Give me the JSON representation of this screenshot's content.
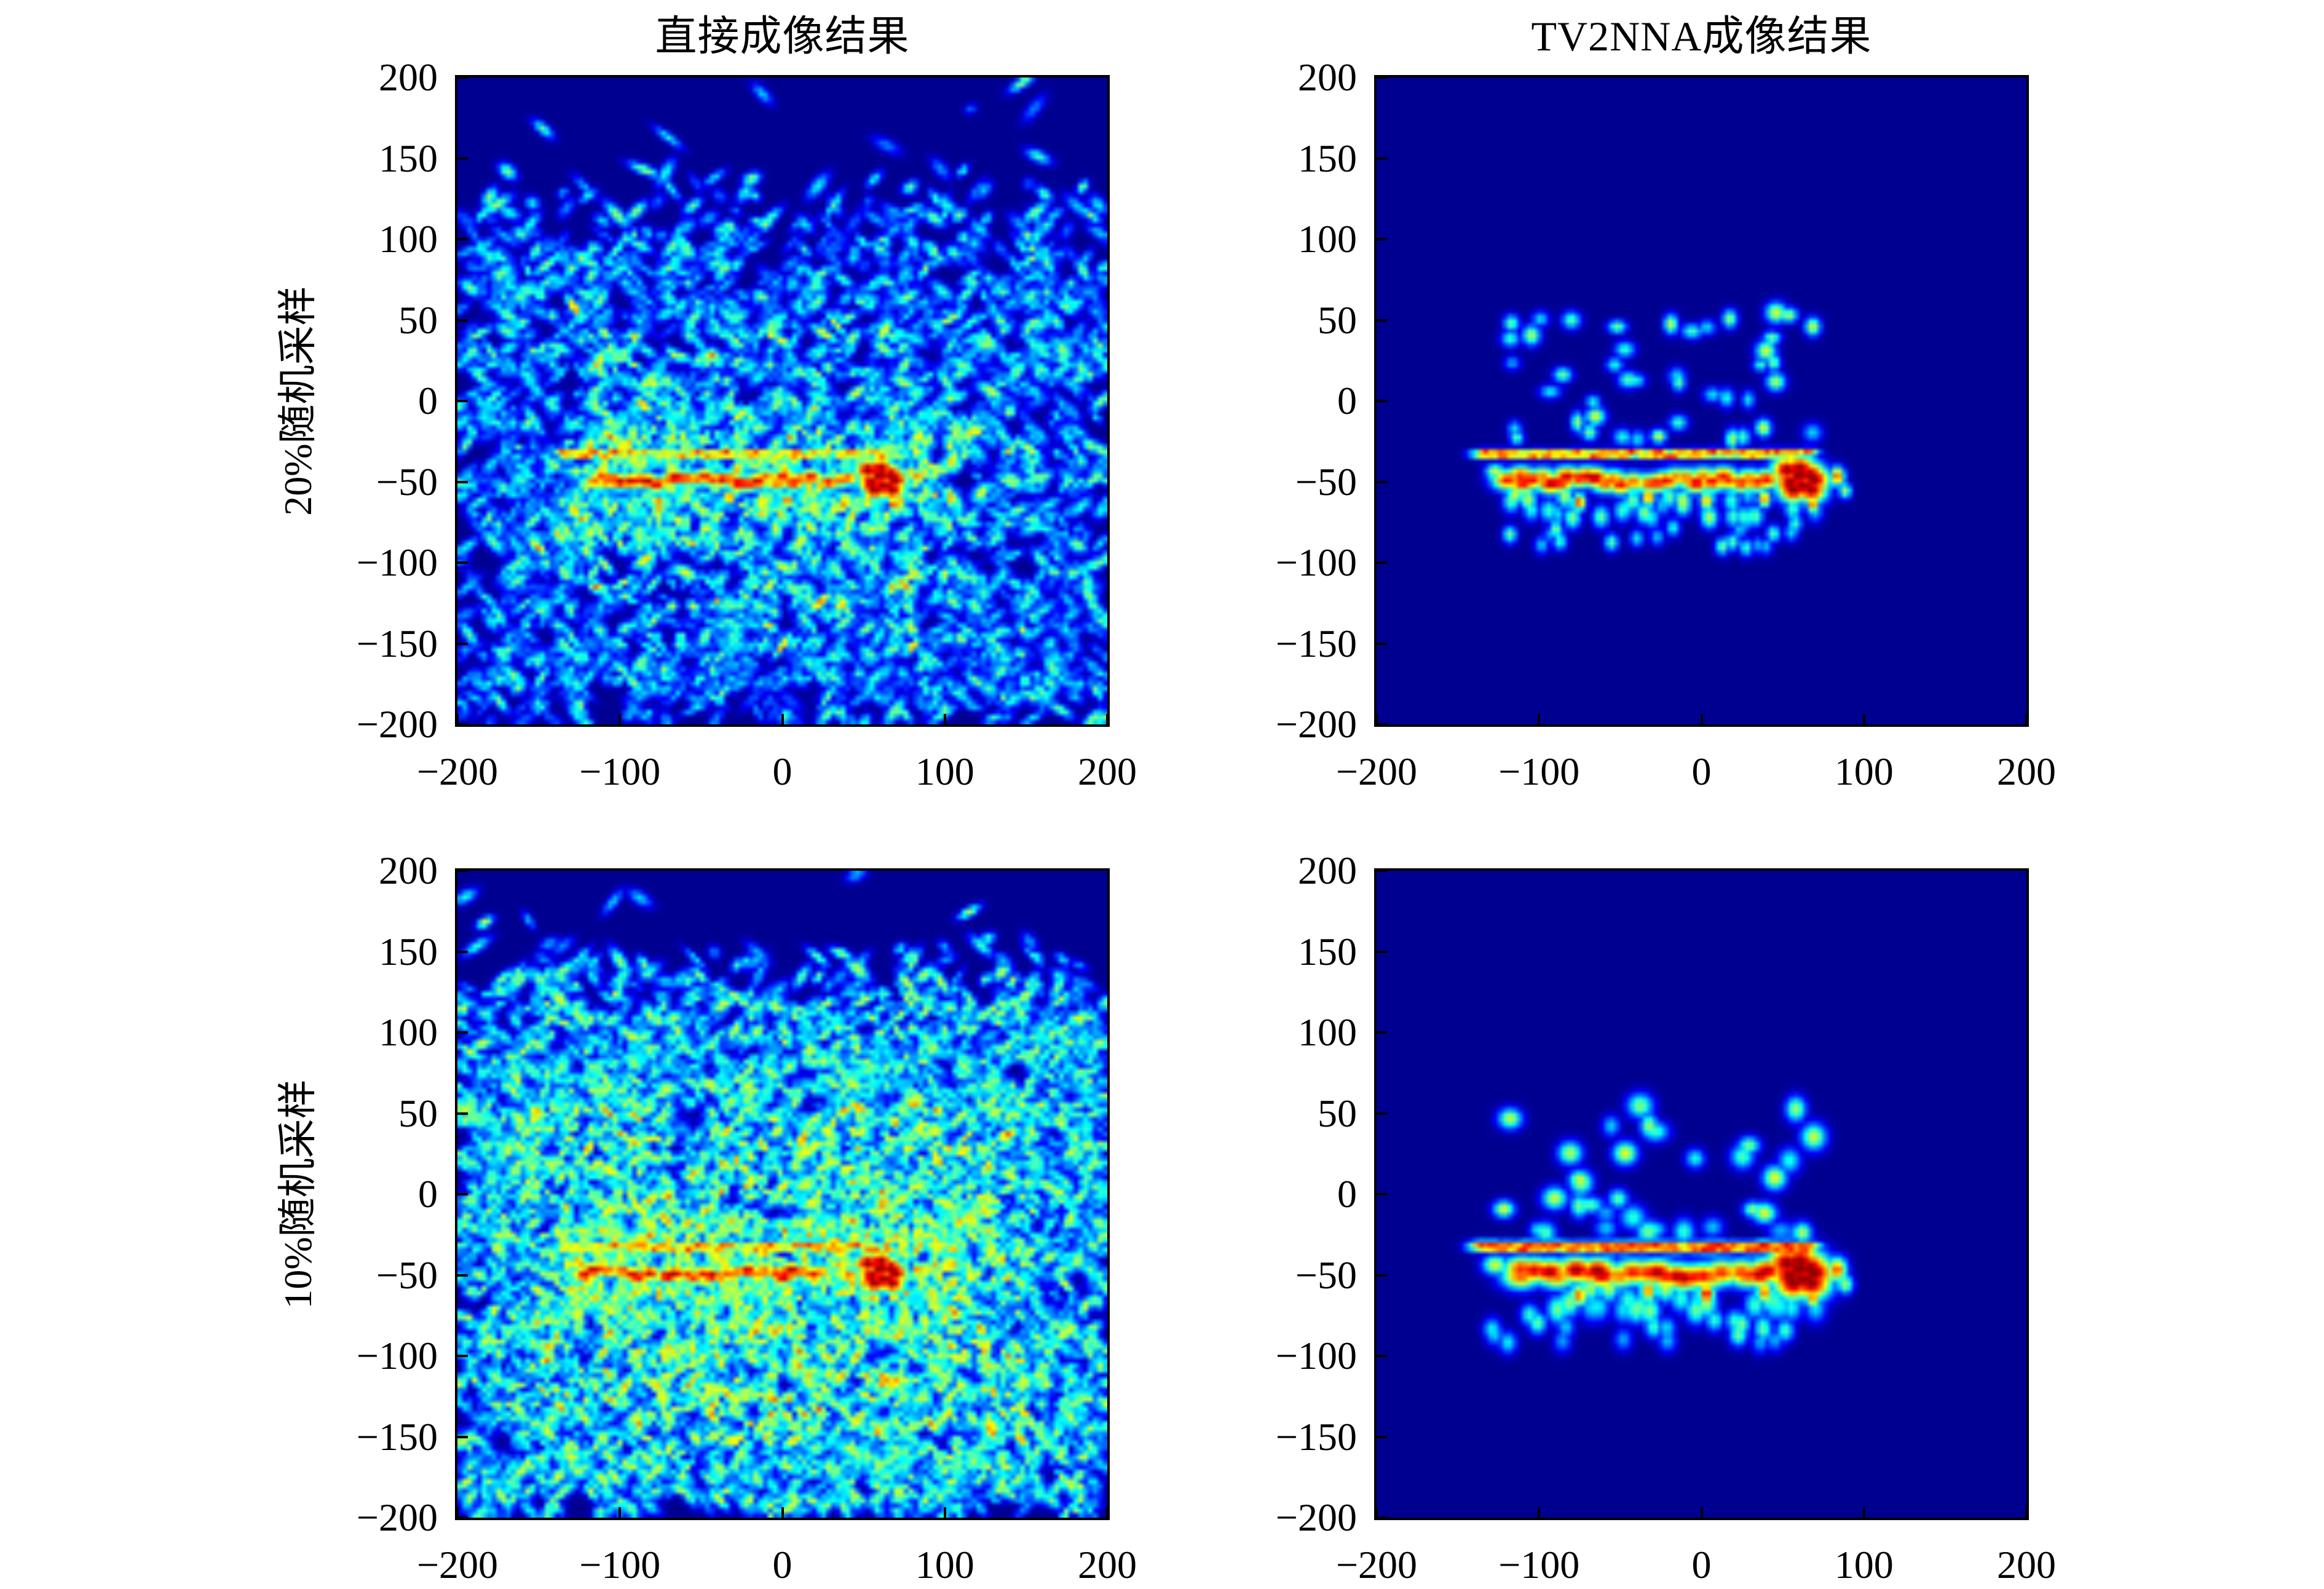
{
  "figure": {
    "column_titles": [
      "直接成像结果",
      "TV2NNA成像结果"
    ],
    "row_labels": [
      "20%随机采样",
      "10%随机采样"
    ],
    "background": "#ffffff",
    "text_color": "#000000"
  },
  "axes": {
    "x_range": [
      -200,
      200
    ],
    "y_range": [
      -200,
      200
    ],
    "x_ticks": [
      -200,
      -100,
      0,
      100,
      200
    ],
    "y_ticks": [
      200,
      150,
      100,
      50,
      0,
      -50,
      -100,
      -150,
      -200
    ],
    "x_tick_labels": [
      "−200",
      "−100",
      "0",
      "100",
      "200"
    ],
    "y_tick_labels": [
      "200",
      "150",
      "100",
      "50",
      "0",
      "−50",
      "−100",
      "−150",
      "−200"
    ]
  },
  "colors": {
    "colormap": "jet",
    "background_low": "#00008F",
    "speckle": "#00BFFF",
    "target_band": "#FFA500",
    "hotspot": "#990000"
  },
  "chart_data": [
    {
      "type": "heatmap",
      "title": "直接成像结果",
      "row_label": "20%随机采样",
      "sampling_rate": "20%",
      "method": "direct imaging",
      "x_range": [
        -200,
        200
      ],
      "y_range": [
        -200,
        200
      ],
      "x_ticks": [
        -200,
        -100,
        0,
        100,
        200
      ],
      "y_ticks": [
        -200,
        -150,
        -100,
        -50,
        0,
        50,
        100,
        150,
        200
      ],
      "colormap": "jet",
      "features": {
        "clutter": "dense low-level blue/cyan speckle covering y ≈ −200…140, fading out above y ≈ 60",
        "target_band": {
          "x": [
            -135,
            95
          ],
          "y": [
            -60,
            -30
          ],
          "color": "yellow-orange streaks"
        },
        "hotspot": {
          "x": 60,
          "y": -48,
          "color": "dark red"
        }
      },
      "render": {
        "seed": 101,
        "kind": "direct",
        "sigma": 0.85,
        "noise": {
          "count": 3300,
          "ampLo": 0.2,
          "ampHi": 0.55,
          "hotFrac": 0.06,
          "fadeStart": 60,
          "fadeEnd": 150,
          "bandExtra": 150
        }
      }
    },
    {
      "type": "heatmap",
      "title": "TV2NNA成像结果",
      "row_label": "20%随机采样",
      "sampling_rate": "20%",
      "method": "TV2NNA reconstruction",
      "x_range": [
        -200,
        200
      ],
      "y_range": [
        -200,
        200
      ],
      "x_ticks": [
        -200,
        -100,
        0,
        100,
        200
      ],
      "y_ticks": [
        -200,
        -150,
        -100,
        -50,
        0,
        50,
        100,
        150,
        200
      ],
      "colormap": "jet",
      "features": {
        "clutter": "none — clean dark-blue background",
        "target_band": {
          "x": [
            -140,
            95
          ],
          "y": [
            -60,
            -30
          ],
          "color": "yellow-orange-red"
        },
        "hotspot": {
          "x": 60,
          "y": -48,
          "color": "dark red"
        },
        "halo": "sparse cyan dots around target, y ≈ −95…55"
      },
      "render": {
        "seed": 202,
        "kind": "tvnna",
        "sigma": 1.0,
        "upperDots": 44,
        "lowerDots": 30
      }
    },
    {
      "type": "heatmap",
      "title": "直接成像结果",
      "row_label": "10%随机采样",
      "sampling_rate": "10%",
      "method": "direct imaging",
      "x_range": [
        -200,
        200
      ],
      "y_range": [
        -200,
        200
      ],
      "x_ticks": [
        -200,
        -100,
        0,
        100,
        200
      ],
      "y_ticks": [
        -200,
        -150,
        -100,
        -50,
        0,
        50,
        100,
        150,
        200
      ],
      "colormap": "jet",
      "features": {
        "clutter": "very dense green/cyan speckle covering y ≈ −200…150, much stronger than 20% case",
        "target_band": {
          "x": [
            -135,
            95
          ],
          "y": [
            -60,
            -30
          ],
          "color": "orange-red streaks partly buried in clutter"
        },
        "hotspot": {
          "x": 60,
          "y": -48,
          "color": "dark red"
        }
      },
      "render": {
        "seed": 303,
        "kind": "direct",
        "sigma": 0.85,
        "noise": {
          "count": 5400,
          "ampLo": 0.26,
          "ampHi": 0.64,
          "hotFrac": 0.11,
          "fadeStart": 90,
          "fadeEnd": 160,
          "bandExtra": 260
        }
      }
    },
    {
      "type": "heatmap",
      "title": "TV2NNA成像结果",
      "row_label": "10%随机采样",
      "sampling_rate": "10%",
      "method": "TV2NNA reconstruction",
      "x_range": [
        -200,
        200
      ],
      "y_range": [
        -200,
        200
      ],
      "x_ticks": [
        -200,
        -100,
        0,
        100,
        200
      ],
      "y_ticks": [
        -200,
        -150,
        -100,
        -50,
        0,
        50,
        100,
        150,
        200
      ],
      "colormap": "jet",
      "features": {
        "clutter": "none — clean dark-blue background",
        "target_band": {
          "x": [
            -140,
            95
          ],
          "y": [
            -60,
            -30
          ],
          "color": "yellow-orange-red, blobs larger/more merged than 20% case"
        },
        "hotspot": {
          "x": 60,
          "y": -48,
          "color": "dark red, enlarged"
        },
        "halo": "sparse cyan dots around target, y ≈ −95…55"
      },
      "render": {
        "seed": 404,
        "kind": "tvnna",
        "sigma": 1.28,
        "upperDots": 36,
        "lowerDots": 26
      }
    }
  ]
}
